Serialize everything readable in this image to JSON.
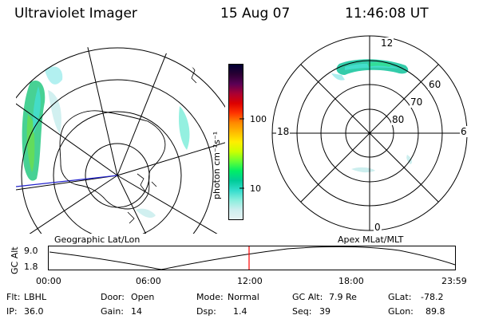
{
  "header": {
    "instrument": "Ultraviolet Imager",
    "date": "15 Aug 07",
    "time": "11:46:08 UT"
  },
  "colorbar": {
    "label": "photon cm⁻²s⁻¹",
    "ticks": [
      "100",
      "10"
    ],
    "colors": [
      "#000033",
      "#2a0033",
      "#5a0055",
      "#aa0033",
      "#dd0000",
      "#ff3300",
      "#ff8800",
      "#ffbb00",
      "#ffee00",
      "#ccff00",
      "#66ff33",
      "#00ee66",
      "#00cc99",
      "#33ddcc",
      "#88eedd",
      "#cceeee",
      "#e6f2f2"
    ]
  },
  "left_map": {
    "caption": "Geographic Lat/Lon"
  },
  "right_map": {
    "caption": "Apex MLat/MLT",
    "mlt_labels": {
      "top": "12",
      "left": "18",
      "right": "6",
      "bottom": "0"
    },
    "mlat_labels": [
      "60",
      "70",
      "80"
    ]
  },
  "altitude_plot": {
    "ylabel": "GC Alt",
    "y_ticks": [
      "9.0",
      "1.8"
    ],
    "x_ticks": [
      "00:00",
      "06:00",
      "12:00",
      "18:00",
      "23:59"
    ],
    "marker_color": "#ff0000"
  },
  "status": {
    "row1": [
      {
        "label": "Flt:",
        "value": "LBHL"
      },
      {
        "label": "Door:",
        "value": "Open"
      },
      {
        "label": "Mode:",
        "value": "Normal"
      },
      {
        "label": "GC Alt:",
        "value": "7.9 Re"
      },
      {
        "label": "GLat:",
        "value": "-78.2"
      }
    ],
    "row2": [
      {
        "label": "IP:",
        "value": "36.0"
      },
      {
        "label": "Gain:",
        "value": "14"
      },
      {
        "label": "Dsp:",
        "value": "1.4"
      },
      {
        "label": "Seq:",
        "value": "39"
      },
      {
        "label": "GLon:",
        "value": "89.8"
      }
    ]
  }
}
